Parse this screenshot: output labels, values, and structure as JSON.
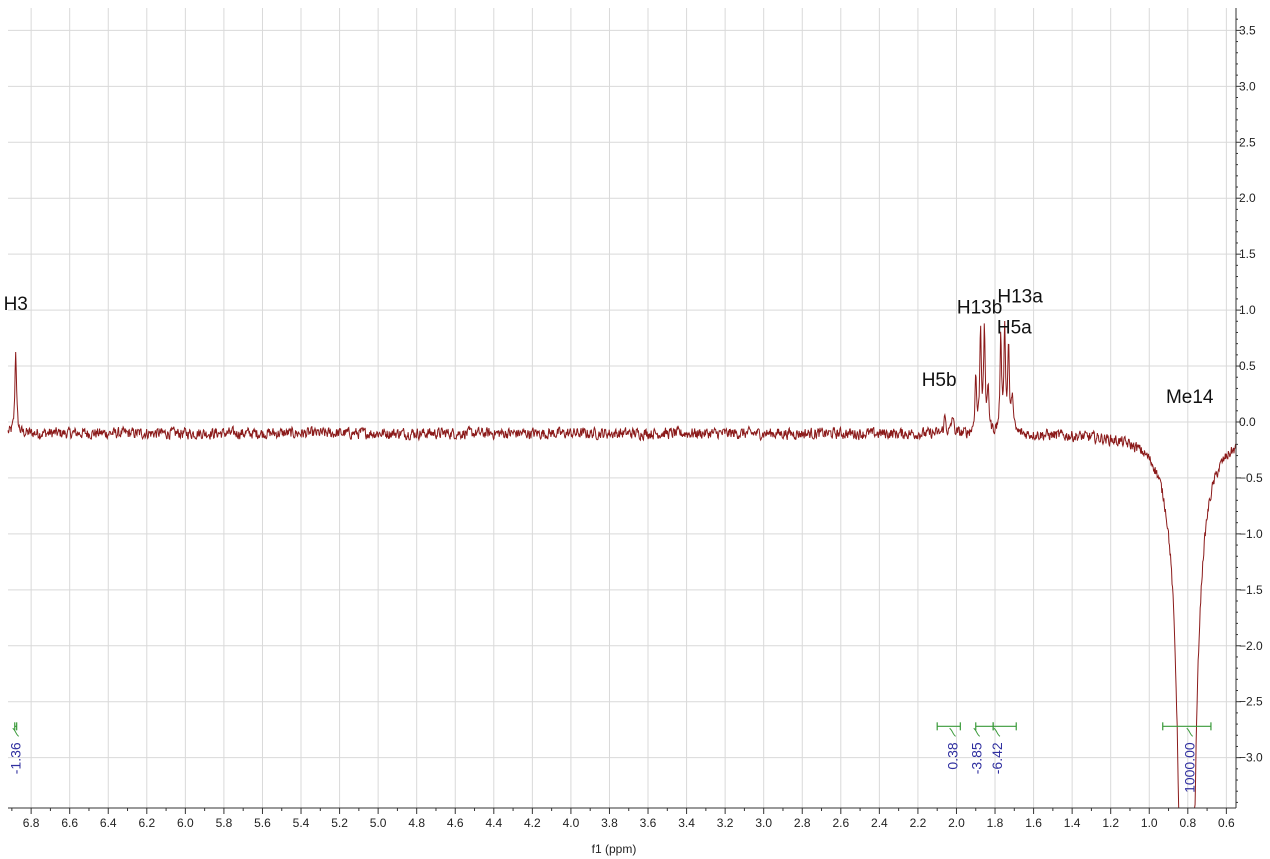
{
  "chart_data": {
    "type": "line",
    "title": "",
    "xlabel": "f1 (ppm)",
    "ylabel": "",
    "x_axis_reversed": true,
    "xlim": [
      6.92,
      0.55
    ],
    "ylim": [
      -3.45,
      3.7
    ],
    "x_ticks": [
      "6.8",
      "6.6",
      "6.4",
      "6.2",
      "6.0",
      "5.8",
      "5.6",
      "5.4",
      "5.2",
      "5.0",
      "4.8",
      "4.6",
      "4.4",
      "4.2",
      "4.0",
      "3.8",
      "3.6",
      "3.4",
      "3.2",
      "3.0",
      "2.8",
      "2.6",
      "2.4",
      "2.2",
      "2.0",
      "1.8",
      "1.6",
      "1.4",
      "1.2",
      "1.0",
      "0.8",
      "0.6"
    ],
    "y_ticks": [
      "3.5",
      "3.0",
      "2.5",
      "2.0",
      "1.5",
      "1.0",
      "0.5",
      "0.0",
      "-0.5",
      "-1.0",
      "-1.5",
      "-2.0",
      "-2.5",
      "-3.0"
    ],
    "grid": true,
    "colors": {
      "spectrum": "#8b1a1a",
      "integral": "#3a9a3a",
      "integral_value": "#3030a0",
      "grid": "#d9d9d9"
    },
    "baseline": -0.1,
    "noise_amplitude": 0.045,
    "peaks": [
      {
        "ppm": 6.88,
        "height": 0.75,
        "width": 0.005
      },
      {
        "ppm": 2.06,
        "height": 0.15,
        "width": 0.006
      },
      {
        "ppm": 2.02,
        "height": 0.16,
        "width": 0.006
      },
      {
        "ppm": 1.9,
        "height": 0.5,
        "width": 0.005
      },
      {
        "ppm": 1.875,
        "height": 0.92,
        "width": 0.005
      },
      {
        "ppm": 1.855,
        "height": 0.88,
        "width": 0.005
      },
      {
        "ppm": 1.835,
        "height": 0.38,
        "width": 0.005
      },
      {
        "ppm": 1.77,
        "height": 0.82,
        "width": 0.005
      },
      {
        "ppm": 1.75,
        "height": 0.9,
        "width": 0.005
      },
      {
        "ppm": 1.73,
        "height": 0.75,
        "width": 0.005
      },
      {
        "ppm": 1.71,
        "height": 0.35,
        "width": 0.005
      },
      {
        "ppm": 0.805,
        "height": -10.0,
        "width": 0.03
      }
    ],
    "peak_labels": [
      {
        "text": "H3",
        "ppm": 6.88,
        "y": 1.0
      },
      {
        "text": "H13b",
        "ppm": 1.88,
        "y": 0.97
      },
      {
        "text": "H13a",
        "ppm": 1.67,
        "y": 1.07
      },
      {
        "text": "H5a",
        "ppm": 1.7,
        "y": 0.79
      },
      {
        "text": "H5b",
        "ppm": 2.09,
        "y": 0.32
      },
      {
        "text": "Me14",
        "ppm": 0.79,
        "y": 0.17
      }
    ],
    "integrals": [
      {
        "from": 6.885,
        "to": 6.875,
        "value": "-1.36",
        "label_ppm": 6.88
      },
      {
        "from": 2.1,
        "to": 1.98,
        "value": "0.38",
        "label_ppm": 2.02
      },
      {
        "from": 1.9,
        "to": 1.81,
        "value": "-3.85",
        "label_ppm": 1.895
      },
      {
        "from": 1.81,
        "to": 1.69,
        "value": "-6.42",
        "label_ppm": 1.79
      },
      {
        "from": 0.93,
        "to": 0.68,
        "value": "1000.00",
        "label_ppm": 0.79
      }
    ],
    "integral_y": -2.72
  }
}
